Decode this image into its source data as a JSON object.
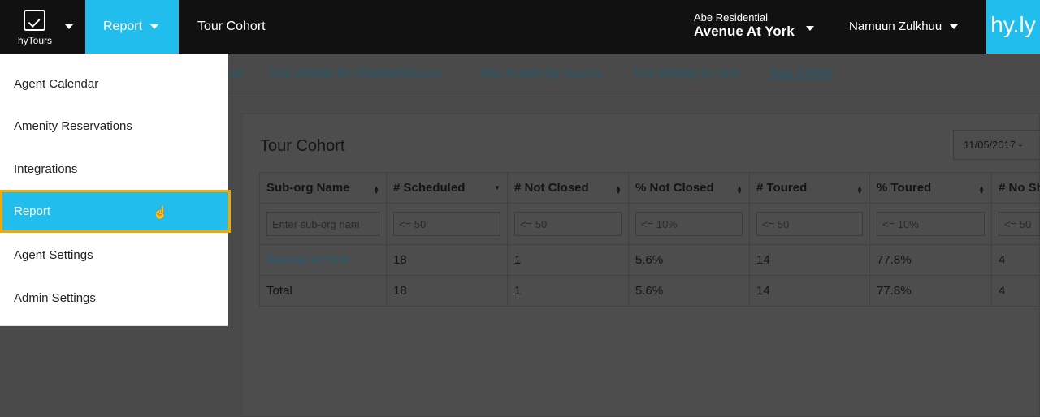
{
  "topbar": {
    "app_name": "hyTours",
    "menu": "Report",
    "breadcrumb": "Tour Cohort",
    "org": "Abe Residential",
    "property": "Avenue At York",
    "user": "Namuun Zulkhuu",
    "brand": "hy.ly"
  },
  "subnav": [
    "nnel",
    "Tour Activity by Channel/Source",
    "Tour Activity by Source",
    "Tour Activity by Unit",
    "Tour Cohort"
  ],
  "panel": {
    "title": "Tour Cohort",
    "date_range": "11/05/2017 -"
  },
  "table": {
    "headers": [
      "Sub-org Name",
      "# Scheduled",
      "# Not Closed",
      "% Not Closed",
      "# Toured",
      "% Toured",
      "# No Sh"
    ],
    "filters": [
      "Enter sub-org nam",
      "<= 50",
      "<= 50",
      "<= 10%",
      "<= 50",
      "<= 10%",
      "<= 50"
    ],
    "rows": [
      [
        "Avenue At York",
        "18",
        "1",
        "5.6%",
        "14",
        "77.8%",
        "4"
      ],
      [
        "Total",
        "18",
        "1",
        "5.6%",
        "14",
        "77.8%",
        "4"
      ]
    ]
  },
  "menu": {
    "items": [
      "Agent Calendar",
      "Amenity Reservations",
      "Integrations",
      "Report",
      "Agent Settings",
      "Admin Settings"
    ],
    "active": "Report",
    "accent": "#21bdec",
    "highlight": "#f5a800"
  }
}
